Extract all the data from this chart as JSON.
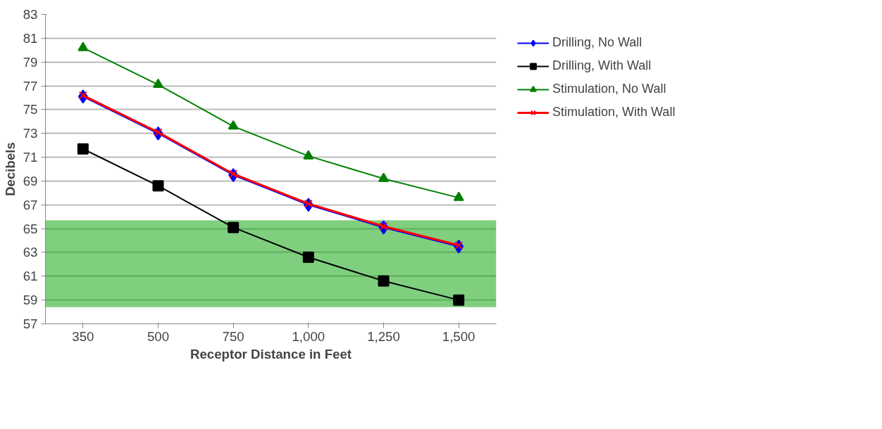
{
  "chart_data": {
    "type": "line",
    "xlabel": "Receptor Distance in Feet",
    "ylabel": "Decibels",
    "categories": [
      "350",
      "500",
      "750",
      "1,000",
      "1,250",
      "1,500"
    ],
    "series": [
      {
        "name": "Drilling, No Wall",
        "color": "#0000ff",
        "marker": "diamond",
        "values": [
          76.1,
          73.0,
          69.5,
          67.0,
          65.1,
          63.5
        ]
      },
      {
        "name": "Drilling, With Wall",
        "color": "#000000",
        "marker": "square",
        "values": [
          71.7,
          68.6,
          65.1,
          62.6,
          60.6,
          59.0
        ]
      },
      {
        "name": "Stimulation, No Wall",
        "color": "#008000",
        "marker": "triangle",
        "values": [
          80.2,
          77.1,
          73.6,
          71.1,
          69.2,
          67.6
        ]
      },
      {
        "name": "Stimulation, With Wall",
        "color": "#ff0000",
        "marker": "cross",
        "values": [
          76.2,
          73.1,
          69.6,
          67.1,
          65.2,
          63.6
        ]
      }
    ],
    "ylim": [
      57,
      83
    ],
    "yticks": [
      57,
      59,
      61,
      63,
      65,
      67,
      69,
      71,
      73,
      75,
      77,
      79,
      81,
      83
    ],
    "grid": "y",
    "legend": "right",
    "line_style": "solid",
    "bands": [
      {
        "axis": "y",
        "from": 58.4,
        "to": 65.7,
        "color": "#00a000"
      }
    ]
  }
}
